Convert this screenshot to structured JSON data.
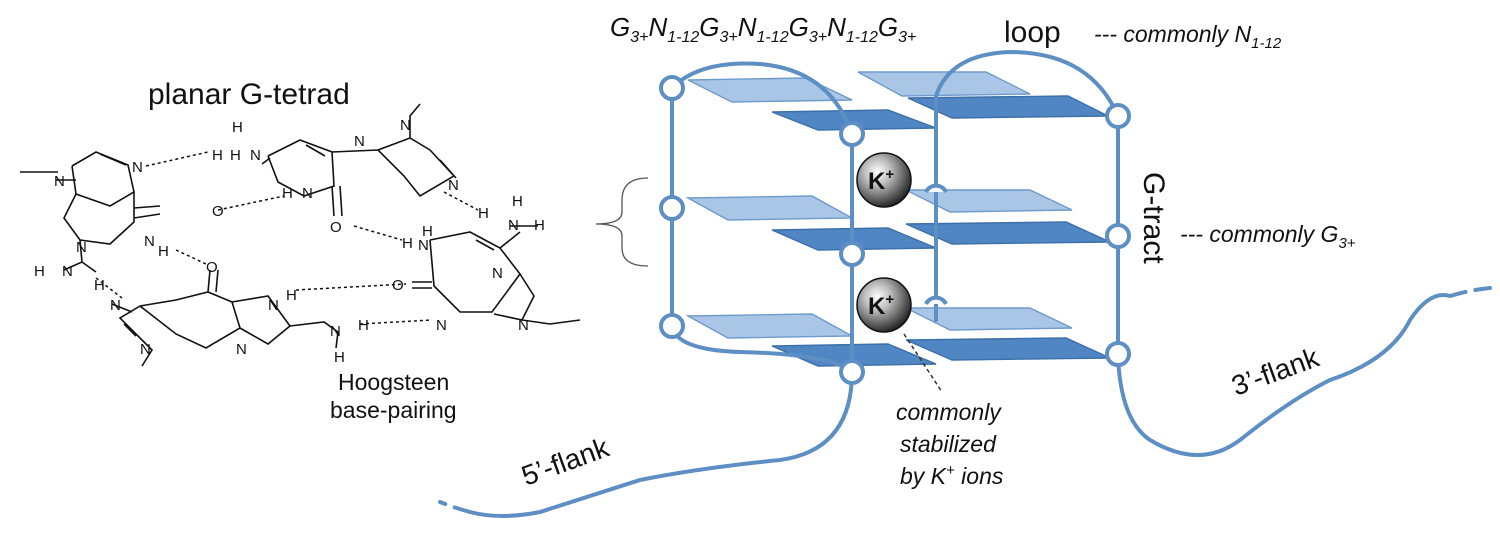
{
  "tetrad": {
    "title": "planar G-tetrad",
    "hoogsteen_line1": "Hoogsteen",
    "hoogsteen_line2": "base-pairing"
  },
  "atoms": {
    "N": "N",
    "H": "H",
    "O": "O"
  },
  "sequence": {
    "G": "G",
    "sub_g": "3+",
    "N": "N",
    "sub_n": "1-12"
  },
  "labels": {
    "loop": "loop",
    "loop_note": "--- commonly N",
    "loop_note_sub": "1-12",
    "gtract": "G-tract",
    "gtract_note": "--- commonly G",
    "gtract_note_sub": "3+",
    "ion": "K",
    "ion_sup": "+",
    "stab_line1": "commonly",
    "stab_line2": "stabilized",
    "stab_line3": "by K",
    "stab_line3_sup": "+",
    "stab_line3_end": " ions",
    "flank5": "5’-flank",
    "flank3": "3’-flank"
  },
  "colors": {
    "strand": "#5d8fc4",
    "tetrad_light": "#a9c6e6",
    "tetrad_dark": "#4f86c3",
    "ion": "#333333"
  }
}
